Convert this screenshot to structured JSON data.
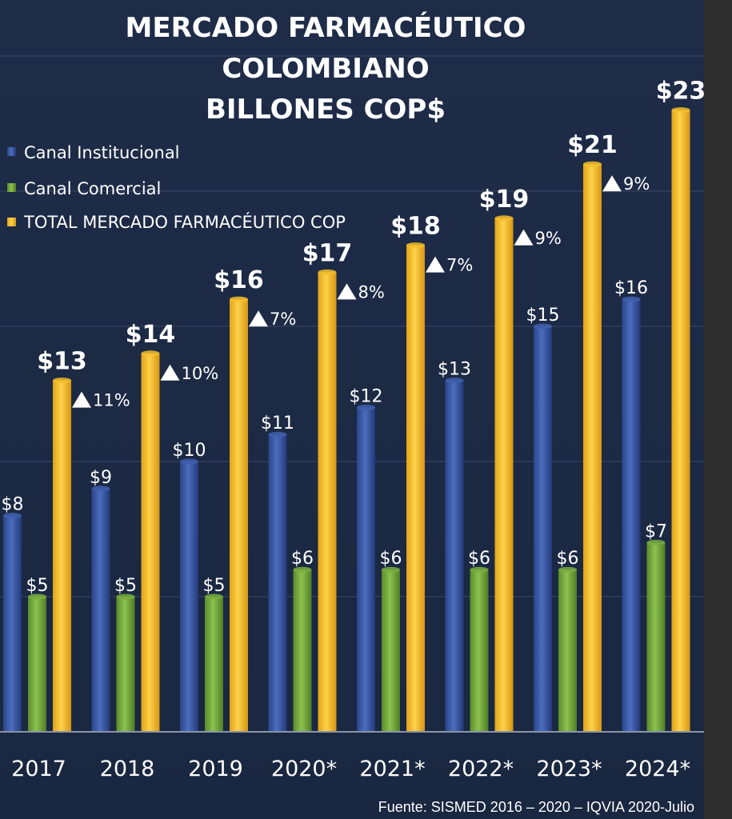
{
  "chart_data": {
    "type": "bar",
    "title_lines": [
      "MERCADO FARMACÉUTICO",
      "COLOMBIANO",
      "BILLONES COP$"
    ],
    "categories": [
      "2017",
      "2018",
      "2019",
      "2020*",
      "2021*",
      "2022*",
      "2023*",
      "2024*"
    ],
    "series": [
      {
        "name": "Canal Institucional",
        "color": "#3f5fae",
        "values": [
          8,
          9,
          10,
          11,
          12,
          13,
          15,
          16
        ],
        "labels": [
          "$8",
          "$9",
          "$10",
          "$11",
          "$12",
          "$13",
          "$15",
          "$16"
        ]
      },
      {
        "name": "Canal Comercial",
        "color": "#78ad3f",
        "values": [
          5,
          5,
          5,
          6,
          6,
          6,
          6,
          7
        ],
        "labels": [
          "$5",
          "$5",
          "$5",
          "$6",
          "$6",
          "$6",
          "$6",
          "$7"
        ]
      },
      {
        "name": "TOTAL MERCADO FARMACÉUTICO COP",
        "color": "#f5bf2a",
        "values": [
          13,
          14,
          16,
          17,
          18,
          19,
          21,
          23
        ],
        "labels": [
          "$13",
          "$14",
          "$16",
          "$17",
          "$18",
          "$19",
          "$21",
          "$23"
        ]
      }
    ],
    "growth_labels": [
      "11%",
      "10%",
      "7%",
      "8%",
      "7%",
      "9%",
      "9%",
      ""
    ],
    "ylim": [
      0,
      25
    ],
    "grid": true,
    "legend_position": "top-left",
    "source": "Fuente: SISMED 2016 – 2020 – IQVIA 2020-Julio"
  }
}
